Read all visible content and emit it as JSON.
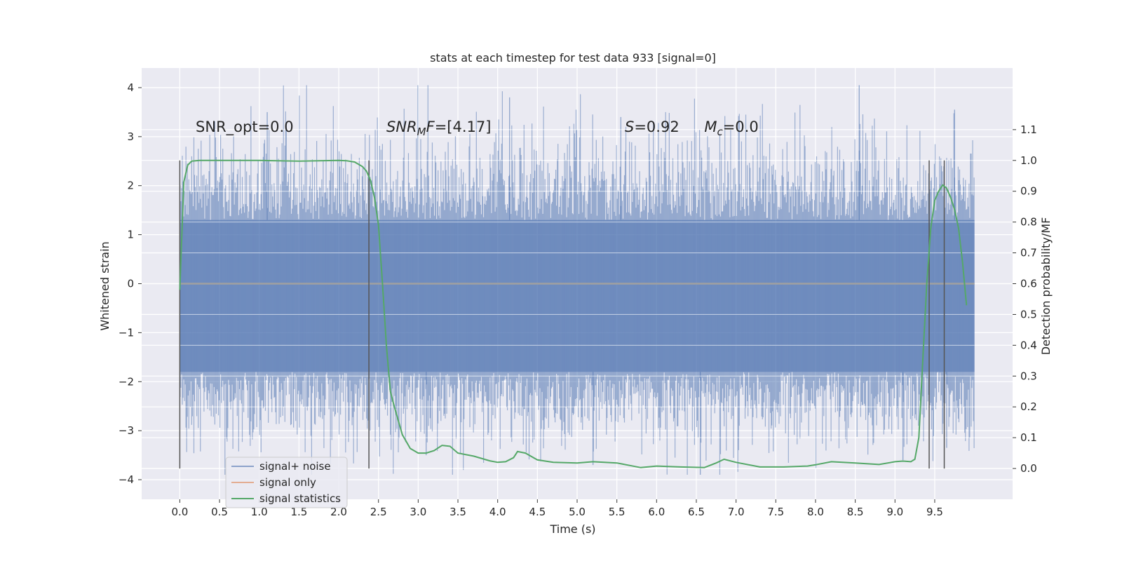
{
  "chart_data": {
    "type": "line",
    "title": "stats at each timestep for test data 933 [signal=0]",
    "xlabel": "Time (s)",
    "ylabel": "Whitened strain",
    "ylabel_right": "Detection probability/MF",
    "xlim": [
      -0.48,
      10.48
    ],
    "ylim": [
      -4.4,
      4.4
    ],
    "ylim_right": [
      -0.1,
      1.3
    ],
    "xticks": [
      0.0,
      0.5,
      1.0,
      1.5,
      2.0,
      2.5,
      3.0,
      3.5,
      4.0,
      4.5,
      5.0,
      5.5,
      6.0,
      6.5,
      7.0,
      7.5,
      8.0,
      8.5,
      9.0,
      9.5
    ],
    "xtick_labels": [
      "0.0",
      "0.5",
      "1.0",
      "1.5",
      "2.0",
      "2.5",
      "3.0",
      "3.5",
      "4.0",
      "4.5",
      "5.0",
      "5.5",
      "6.0",
      "6.5",
      "7.0",
      "7.5",
      "8.0",
      "8.5",
      "9.0",
      "9.5"
    ],
    "yticks": [
      -4,
      -3,
      -2,
      -1,
      0,
      1,
      2,
      3,
      4
    ],
    "ytick_labels": [
      "−4",
      "−3",
      "−2",
      "−1",
      "0",
      "1",
      "2",
      "3",
      "4"
    ],
    "yticks_right": [
      0.0,
      0.1,
      0.2,
      0.3,
      0.4,
      0.5,
      0.6,
      0.7,
      0.8,
      0.9,
      1.0,
      1.1
    ],
    "ytick_labels_right": [
      "0.0",
      "0.1",
      "0.2",
      "0.3",
      "0.4",
      "0.5",
      "0.6",
      "0.7",
      "0.8",
      "0.9",
      "1.0",
      "1.1"
    ],
    "grid": true,
    "legend_position": "bottom-left",
    "noise_band": {
      "t_start": 0.0,
      "t_end": 10.0,
      "core_low": -1.8,
      "core_high": 1.3,
      "extreme_low": -3.9,
      "extreme_high": 4.05
    },
    "series": [
      {
        "name": "signal+ noise",
        "color": "#4c72b0",
        "kind": "noise",
        "x": [
          0.0,
          10.0
        ],
        "y": [
          0.0,
          0.0
        ]
      },
      {
        "name": "signal only",
        "color": "#dd8452",
        "x": [
          0.0,
          10.0
        ],
        "y": [
          0.0,
          0.0
        ]
      },
      {
        "name": "signal statistics",
        "color": "#55a868",
        "axis": "right",
        "x": [
          0.0,
          0.05,
          0.1,
          0.15,
          0.25,
          0.5,
          1.0,
          1.5,
          2.0,
          2.1,
          2.2,
          2.3,
          2.35,
          2.4,
          2.45,
          2.5,
          2.55,
          2.6,
          2.65,
          2.7,
          2.8,
          2.9,
          3.0,
          3.1,
          3.2,
          3.3,
          3.4,
          3.5,
          3.7,
          3.9,
          4.0,
          4.1,
          4.2,
          4.25,
          4.35,
          4.5,
          4.7,
          5.0,
          5.2,
          5.5,
          5.8,
          6.0,
          6.3,
          6.6,
          6.75,
          6.85,
          7.0,
          7.3,
          7.6,
          7.9,
          8.0,
          8.2,
          8.5,
          8.8,
          9.0,
          9.1,
          9.2,
          9.25,
          9.3,
          9.35,
          9.4,
          9.45,
          9.5,
          9.55,
          9.6,
          9.65,
          9.7,
          9.75,
          9.8,
          9.85,
          9.9
        ],
        "y": [
          0.58,
          0.93,
          0.985,
          0.998,
          1.0,
          1.0,
          1.0,
          0.998,
          1.0,
          0.999,
          0.995,
          0.98,
          0.965,
          0.935,
          0.88,
          0.79,
          0.6,
          0.4,
          0.25,
          0.2,
          0.11,
          0.065,
          0.05,
          0.05,
          0.058,
          0.075,
          0.072,
          0.05,
          0.04,
          0.025,
          0.02,
          0.022,
          0.035,
          0.055,
          0.05,
          0.028,
          0.02,
          0.018,
          0.022,
          0.018,
          0.003,
          0.008,
          0.005,
          0.003,
          0.018,
          0.03,
          0.02,
          0.005,
          0.005,
          0.008,
          0.012,
          0.022,
          0.018,
          0.013,
          0.022,
          0.024,
          0.022,
          0.03,
          0.1,
          0.35,
          0.6,
          0.78,
          0.87,
          0.9,
          0.92,
          0.91,
          0.88,
          0.84,
          0.78,
          0.67,
          0.53
        ]
      }
    ],
    "vlines": [
      0.0,
      2.38,
      9.43,
      9.62
    ],
    "annotations": [
      {
        "x": 0.2,
        "y": 3.1,
        "parts": [
          {
            "t": "SNR_opt=0.0",
            "i": false
          }
        ]
      },
      {
        "x": 2.6,
        "y": 3.1,
        "parts": [
          {
            "t": "SNR",
            "i": true
          },
          {
            "t": "M",
            "i": true,
            "sub": true
          },
          {
            "t": "F",
            "i": true
          },
          {
            "t": "=[4.17]",
            "i": false
          }
        ]
      },
      {
        "x": 5.6,
        "y": 3.1,
        "parts": [
          {
            "t": "S",
            "i": true
          },
          {
            "t": "=0.92",
            "i": false
          }
        ]
      },
      {
        "x": 6.6,
        "y": 3.1,
        "parts": [
          {
            "t": "M",
            "i": true
          },
          {
            "t": "c",
            "i": true,
            "sub": true
          },
          {
            "t": "=0.0",
            "i": false
          }
        ]
      }
    ]
  }
}
